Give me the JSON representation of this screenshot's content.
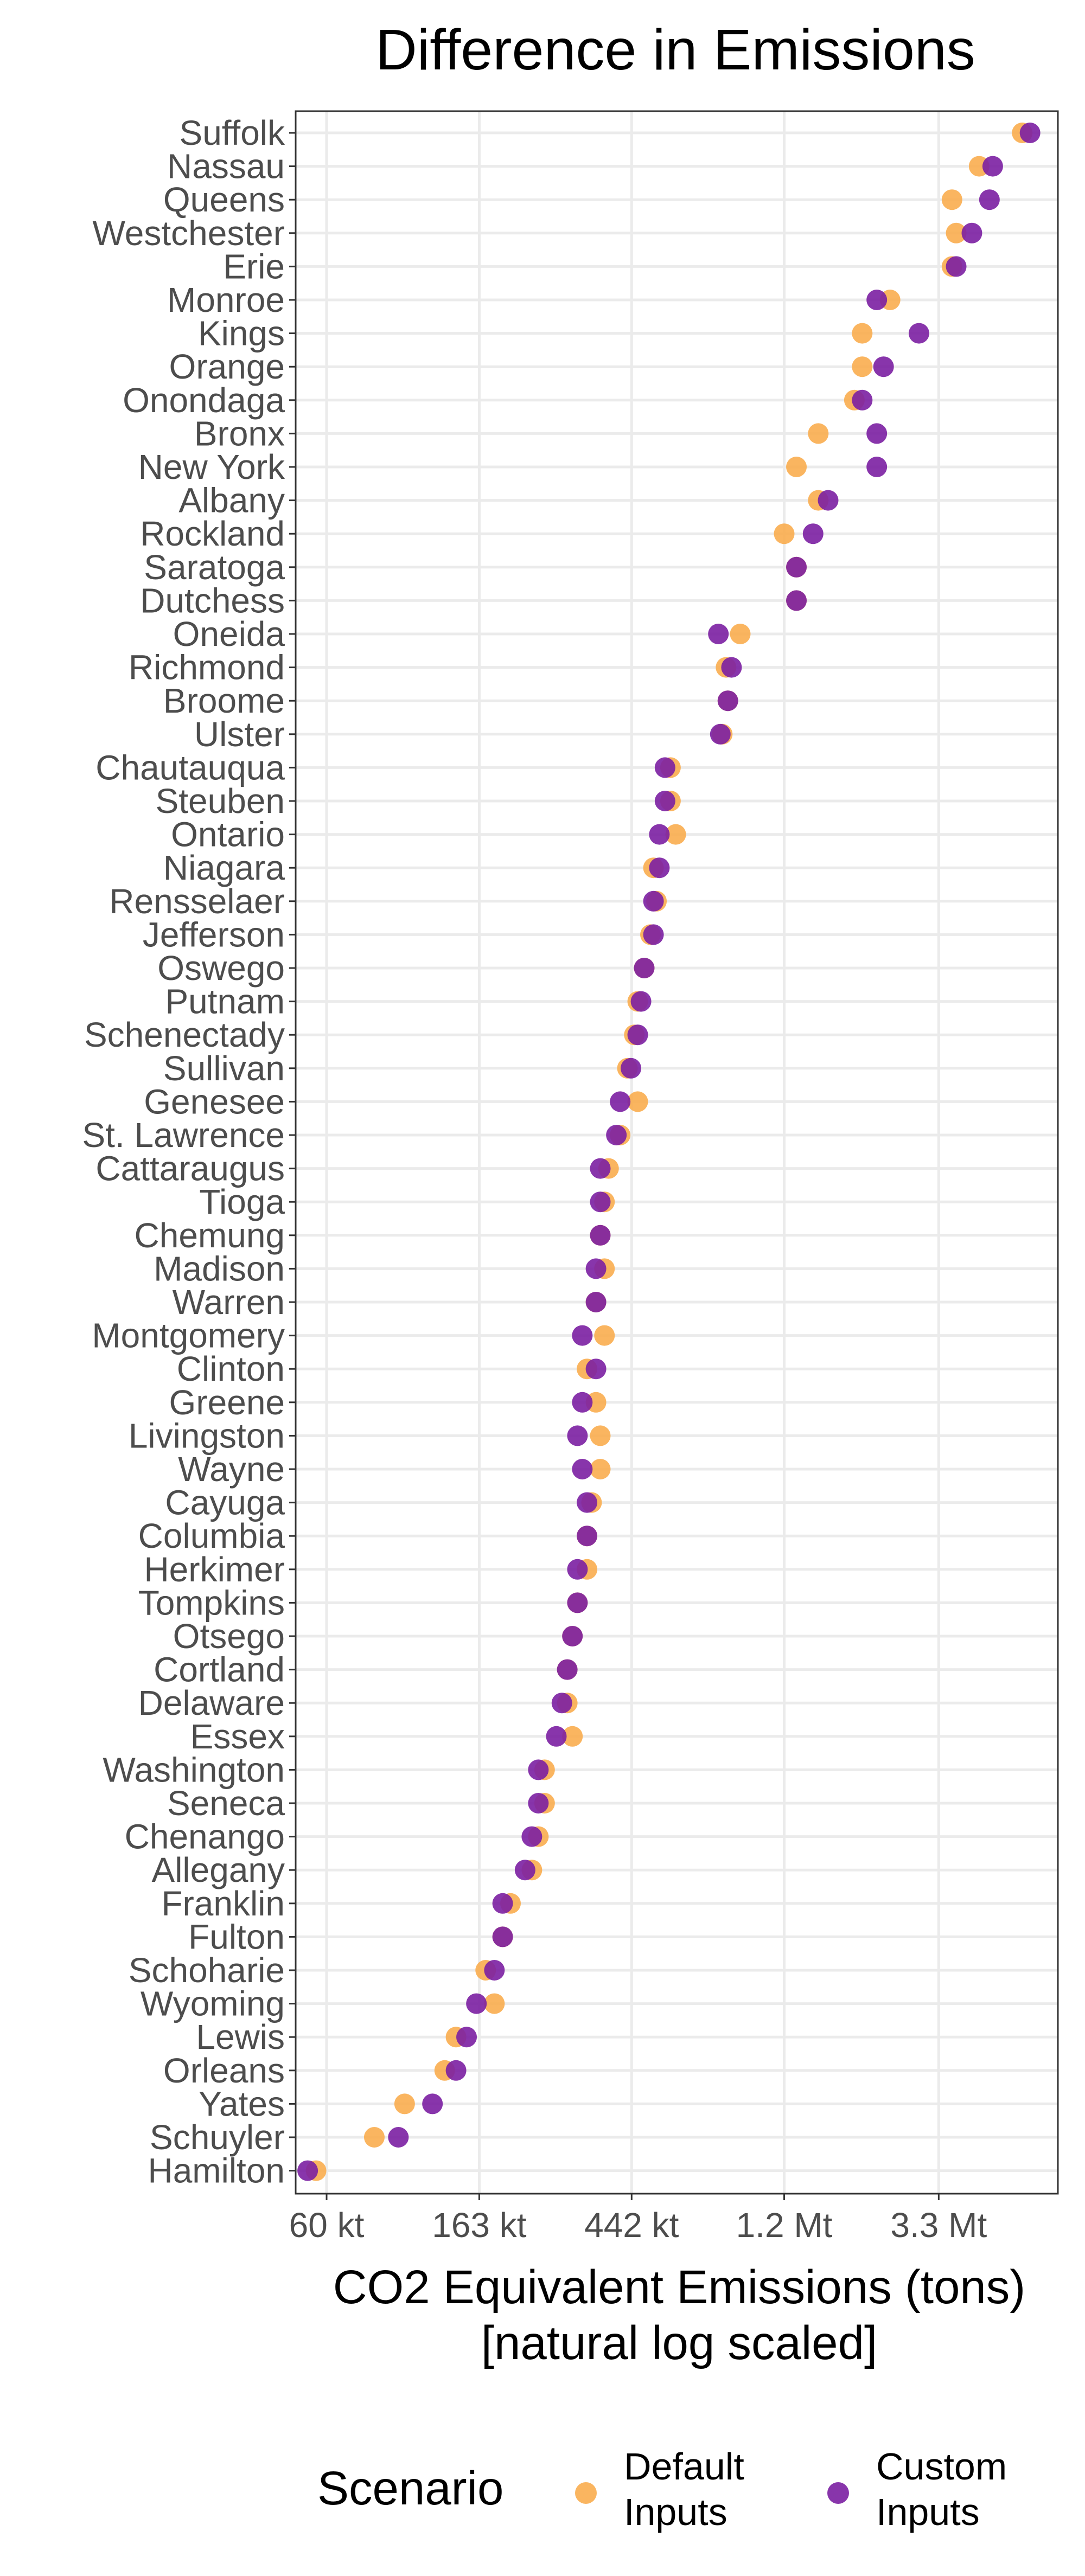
{
  "chart_data": {
    "type": "scatter",
    "title": "Difference in Emissions",
    "xlabel_line1": "CO2 Equivalent Emissions (tons)",
    "xlabel_line2": "[natural log scaled]",
    "x_scale": "log",
    "xlim": [
      49000,
      7200000
    ],
    "x_ticks": [
      {
        "value": 60000,
        "label": "60 kt"
      },
      {
        "value": 163000,
        "label": "163 kt"
      },
      {
        "value": 442000,
        "label": "442 kt"
      },
      {
        "value": 1200000,
        "label": "1.2 Mt"
      },
      {
        "value": 3300000,
        "label": "3.3 Mt"
      }
    ],
    "grid": true,
    "legend": {
      "title": "Scenario",
      "position": "bottom",
      "items": [
        {
          "line1": "Default",
          "line2": "Inputs",
          "color": "#f9ad4f"
        },
        {
          "line1": "Custom",
          "line2": "Inputs",
          "color": "#7b1fa2"
        }
      ]
    },
    "categories": [
      "Suffolk",
      "Nassau",
      "Queens",
      "Westchester",
      "Erie",
      "Monroe",
      "Kings",
      "Orange",
      "Onondaga",
      "Bronx",
      "New York",
      "Albany",
      "Rockland",
      "Saratoga",
      "Dutchess",
      "Oneida",
      "Richmond",
      "Broome",
      "Ulster",
      "Chautauqua",
      "Steuben",
      "Ontario",
      "Niagara",
      "Rensselaer",
      "Jefferson",
      "Oswego",
      "Putnam",
      "Schenectady",
      "Sullivan",
      "Genesee",
      "St. Lawrence",
      "Cattaraugus",
      "Tioga",
      "Chemung",
      "Madison",
      "Warren",
      "Montgomery",
      "Clinton",
      "Greene",
      "Livingston",
      "Wayne",
      "Cayuga",
      "Columbia",
      "Herkimer",
      "Tompkins",
      "Otsego",
      "Cortland",
      "Delaware",
      "Essex",
      "Washington",
      "Seneca",
      "Chenango",
      "Allegany",
      "Franklin",
      "Fulton",
      "Schoharie",
      "Wyoming",
      "Lewis",
      "Orleans",
      "Yates",
      "Schuyler",
      "Hamilton"
    ],
    "series": [
      {
        "name": "Default Inputs",
        "color": "#f9ad4f",
        "values": [
          5700000,
          4300000,
          3600000,
          3700000,
          3600000,
          2400000,
          2000000,
          2000000,
          1900000,
          1500000,
          1300000,
          1500000,
          1200000,
          1300000,
          1300000,
          900000,
          820000,
          830000,
          800000,
          570000,
          570000,
          590000,
          510000,
          520000,
          500000,
          480000,
          460000,
          450000,
          430000,
          460000,
          410000,
          380000,
          370000,
          360000,
          370000,
          350000,
          370000,
          330000,
          350000,
          360000,
          360000,
          340000,
          330000,
          330000,
          310000,
          300000,
          290000,
          290000,
          300000,
          250000,
          250000,
          240000,
          230000,
          200000,
          190000,
          170000,
          180000,
          140000,
          130000,
          100000,
          82000,
          56000
        ]
      },
      {
        "name": "Custom Inputs",
        "color": "#7b1fa2",
        "values": [
          6000000,
          4700000,
          4600000,
          4100000,
          3700000,
          2200000,
          2900000,
          2300000,
          2000000,
          2200000,
          2200000,
          1600000,
          1450000,
          1300000,
          1300000,
          780000,
          850000,
          830000,
          790000,
          550000,
          550000,
          530000,
          530000,
          510000,
          510000,
          480000,
          470000,
          460000,
          440000,
          410000,
          400000,
          360000,
          360000,
          360000,
          350000,
          350000,
          320000,
          350000,
          320000,
          310000,
          320000,
          330000,
          330000,
          310000,
          310000,
          300000,
          290000,
          280000,
          270000,
          240000,
          240000,
          230000,
          220000,
          190000,
          190000,
          180000,
          160000,
          150000,
          140000,
          120000,
          96000,
          53000
        ]
      }
    ]
  }
}
